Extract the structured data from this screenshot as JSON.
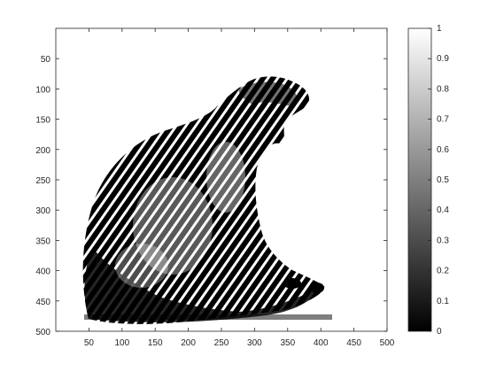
{
  "chart_data": {
    "type": "heatmap",
    "description": "Binary thresholded image shown with a grayscale colormap",
    "x_ticks": [
      50,
      100,
      150,
      200,
      250,
      300,
      350,
      400,
      450,
      500
    ],
    "y_ticks": [
      50,
      100,
      150,
      200,
      250,
      300,
      350,
      400,
      450,
      500
    ],
    "xlim": [
      0,
      500
    ],
    "ylim": [
      0,
      500
    ],
    "colorbar": {
      "ticks": [
        0,
        0.1,
        0.2,
        0.3,
        0.4,
        0.5,
        0.6,
        0.7,
        0.8,
        0.9,
        1
      ],
      "colormap": "gray",
      "range": [
        0,
        1
      ]
    },
    "colors": {
      "axis": "#262626",
      "low": "#000000",
      "high": "#ffffff"
    }
  }
}
